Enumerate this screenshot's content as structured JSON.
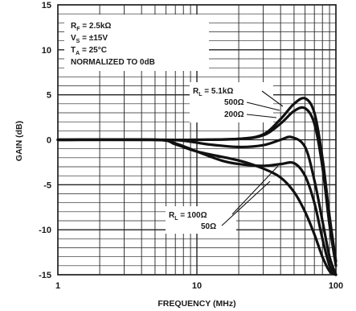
{
  "chart_data": {
    "type": "line",
    "xlabel": "FREQUENCY (MHz)",
    "ylabel": "GAIN (dB)",
    "xscale": "log",
    "xlim": [
      1,
      100
    ],
    "ylim": [
      -15,
      15
    ],
    "grid": true,
    "x_ticks": [
      {
        "value": 1,
        "label": "1"
      },
      {
        "value": 10,
        "label": "10"
      },
      {
        "value": 100,
        "label": "100"
      }
    ],
    "y_ticks": [
      {
        "value": 15,
        "label": "15"
      },
      {
        "value": 10,
        "label": "10"
      },
      {
        "value": 5,
        "label": "5"
      },
      {
        "value": 0,
        "label": "0"
      },
      {
        "value": -5,
        "label": "-5"
      },
      {
        "value": -10,
        "label": "-10"
      },
      {
        "value": -15,
        "label": "-15"
      }
    ],
    "conditions": {
      "rf": {
        "main": "R",
        "sub": "F",
        "rest": " = 2.5kΩ"
      },
      "vs": {
        "main": "V",
        "sub": "S",
        "rest": " = ±15V"
      },
      "ta": {
        "main": "T",
        "sub": "A",
        "rest": " = 25°C"
      },
      "norm": "NORMALIZED TO 0dB"
    },
    "series": [
      {
        "name": "R_L = 5.1kΩ",
        "x": [
          1,
          5,
          10,
          20,
          30,
          40,
          50,
          60,
          70,
          80,
          90,
          100
        ],
        "y": [
          0,
          0,
          0,
          0.1,
          0.6,
          2.3,
          4.0,
          4.6,
          3.0,
          -2.0,
          -8.5,
          -13.5
        ]
      },
      {
        "name": "500Ω",
        "x": [
          1,
          5,
          10,
          20,
          30,
          40,
          50,
          60,
          70,
          80,
          90,
          100
        ],
        "y": [
          0,
          0,
          0,
          0.1,
          0.5,
          1.8,
          3.2,
          3.5,
          1.8,
          -3.0,
          -9.5,
          -14.0
        ]
      },
      {
        "name": "200Ω",
        "x": [
          1,
          5,
          8,
          12,
          20,
          30,
          40,
          48,
          60,
          70,
          80,
          90,
          100
        ],
        "y": [
          0,
          0,
          -0.1,
          -0.5,
          -0.8,
          -0.6,
          0.0,
          0.3,
          -0.8,
          -4.5,
          -9.0,
          -13.0,
          -15.0
        ]
      },
      {
        "name": "100Ω",
        "x": [
          1,
          5,
          7,
          10,
          15,
          20,
          30,
          40,
          50,
          60,
          70,
          80,
          90,
          100
        ],
        "y": [
          0,
          0,
          -0.4,
          -1.3,
          -2.3,
          -2.7,
          -2.9,
          -2.7,
          -2.6,
          -4.0,
          -7.0,
          -11.0,
          -14.0,
          -15.0
        ]
      },
      {
        "name": "50Ω",
        "x": [
          1,
          5,
          7,
          10,
          20,
          30,
          40,
          50,
          60,
          70,
          80,
          90,
          100
        ],
        "y": [
          0,
          0,
          -0.5,
          -1.3,
          -2.3,
          -3.2,
          -4.2,
          -5.8,
          -8.0,
          -10.5,
          -13.0,
          -14.6,
          -15.0
        ]
      }
    ],
    "labels": {
      "rl_high": {
        "main": "R",
        "sub": "L",
        "rest": " = 5.1kΩ"
      },
      "r500": "500Ω",
      "r200": "200Ω",
      "rl_low": {
        "main": "R",
        "sub": "L",
        "rest": " = 100Ω"
      },
      "r50": "50Ω"
    }
  }
}
